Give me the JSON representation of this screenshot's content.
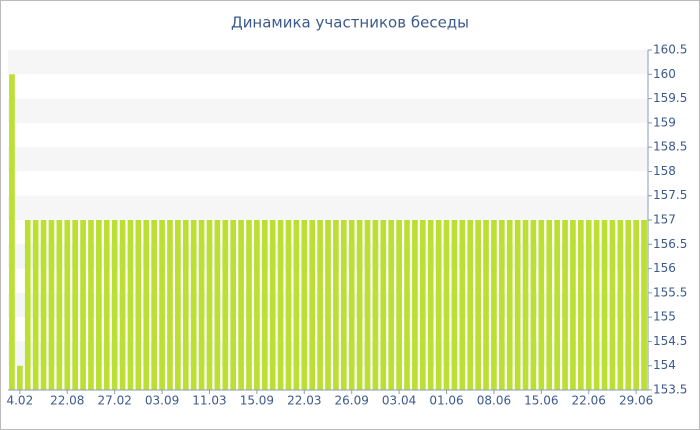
{
  "chart_data": {
    "type": "bar",
    "title": "Динамика участников беседы",
    "categories": [
      null,
      "4.02",
      null,
      null,
      null,
      null,
      null,
      "22.08",
      null,
      null,
      null,
      null,
      null,
      "27.02",
      null,
      null,
      null,
      null,
      null,
      "03.09",
      null,
      null,
      null,
      null,
      null,
      "11.03",
      null,
      null,
      null,
      null,
      null,
      "15.09",
      null,
      null,
      null,
      null,
      null,
      "22.03",
      null,
      null,
      null,
      null,
      null,
      "26.09",
      null,
      null,
      null,
      null,
      null,
      "03.04",
      null,
      null,
      null,
      null,
      null,
      "01.06",
      null,
      null,
      null,
      null,
      null,
      "08.06",
      null,
      null,
      null,
      null,
      null,
      "15.06",
      null,
      null,
      null,
      null,
      null,
      "22.06",
      null,
      null,
      null,
      null,
      null,
      "29.06",
      null
    ],
    "values": [
      160,
      154,
      157,
      157,
      157,
      157,
      157,
      157,
      157,
      157,
      157,
      157,
      157,
      157,
      157,
      157,
      157,
      157,
      157,
      157,
      157,
      157,
      157,
      157,
      157,
      157,
      157,
      157,
      157,
      157,
      157,
      157,
      157,
      157,
      157,
      157,
      157,
      157,
      157,
      157,
      157,
      157,
      157,
      157,
      157,
      157,
      157,
      157,
      157,
      157,
      157,
      157,
      157,
      157,
      157,
      157,
      157,
      157,
      157,
      157,
      157,
      157,
      157,
      157,
      157,
      157,
      157,
      157,
      157,
      157,
      157,
      157,
      157,
      157,
      157,
      157,
      157,
      157,
      157,
      157,
      157
    ],
    "color": "#bbe033",
    "ylim": [
      153.5,
      160.5
    ],
    "yticks": [
      153.5,
      154,
      154.5,
      155,
      155.5,
      156,
      156.5,
      157,
      157.5,
      158,
      158.5,
      159,
      159.5,
      160,
      160.5
    ],
    "grid": true
  }
}
